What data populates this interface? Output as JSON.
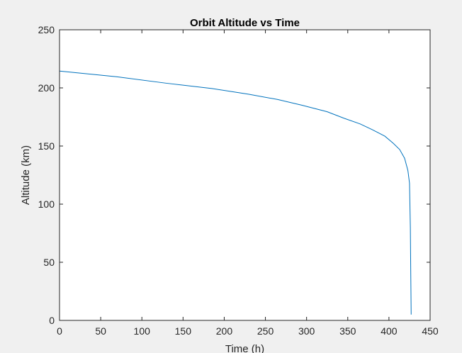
{
  "chart_data": {
    "type": "line",
    "title": "Orbit Altitude vs Time",
    "xlabel": "Time (h)",
    "ylabel": "Altitude (km)",
    "xlim": [
      0,
      450
    ],
    "ylim": [
      0,
      250
    ],
    "xticks": [
      0,
      50,
      100,
      150,
      200,
      250,
      300,
      350,
      400,
      450
    ],
    "yticks": [
      0,
      50,
      100,
      150,
      200,
      250
    ],
    "grid": false,
    "legend": "none",
    "series": [
      {
        "color": "#0072BD",
        "x": [
          0,
          70,
          130,
          185,
          230,
          265,
          295,
          325,
          345,
          365,
          380,
          395,
          405,
          413,
          419,
          423,
          425,
          426,
          426.5,
          427
        ],
        "y": [
          214.5,
          209.5,
          204,
          199.5,
          194.5,
          190,
          185,
          179.5,
          174,
          169,
          164,
          158.5,
          152.5,
          147,
          139.5,
          129,
          118,
          80,
          40,
          5
        ]
      }
    ]
  },
  "colors": {
    "figure_background": "#f0f0f0",
    "axes_background": "#ffffff",
    "axis_color": "#262626"
  }
}
